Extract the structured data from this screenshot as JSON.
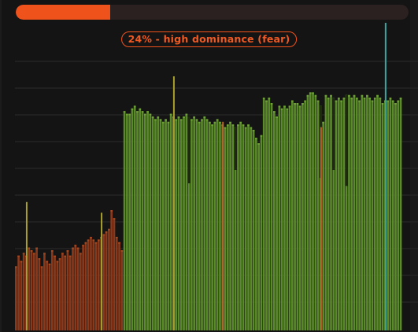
{
  "progress": {
    "value": 0.24,
    "fill_color": "#f0521c",
    "track_color": "#2a2120"
  },
  "status": {
    "label": "24% - high dominance (fear)"
  },
  "colors": {
    "background": "#141414",
    "gridline": "#2b2b2b",
    "fear_bar": "#8a3a1c",
    "fear_bar_top": "#a4481f",
    "greed_bar": "#5a8a2a",
    "greed_bar_top": "#6fa236",
    "marker_yellow": "#a8a02a",
    "marker_orange": "#c0602a",
    "marker_teal": "#3aa6a0",
    "marker_dark": "#1e2a10"
  },
  "chart_data": {
    "type": "bar",
    "gridlines": true,
    "ylim": [
      0,
      100
    ],
    "segments": [
      {
        "name": "fear",
        "count": 42
      },
      {
        "name": "greed",
        "count": 108
      }
    ],
    "values": [
      24,
      28,
      26,
      29,
      28,
      31,
      30,
      29,
      31,
      27,
      24,
      29,
      26,
      25,
      30,
      28,
      26,
      27,
      29,
      28,
      30,
      28,
      31,
      32,
      31,
      29,
      32,
      33,
      34,
      35,
      34,
      33,
      34,
      35,
      36,
      37,
      38,
      45,
      42,
      35,
      33,
      30,
      82,
      81,
      81,
      83,
      84,
      82,
      83,
      82,
      81,
      82,
      81,
      80,
      79,
      80,
      79,
      78,
      79,
      78,
      81,
      80,
      79,
      80,
      79,
      80,
      81,
      80,
      79,
      80,
      79,
      78,
      79,
      80,
      79,
      78,
      77,
      78,
      79,
      78,
      77,
      76,
      77,
      78,
      77,
      76,
      77,
      78,
      77,
      76,
      77,
      76,
      75,
      72,
      70,
      73,
      87,
      86,
      87,
      85,
      82,
      80,
      84,
      83,
      84,
      83,
      84,
      86,
      85,
      85,
      84,
      85,
      86,
      88,
      89,
      89,
      88,
      86,
      84,
      78,
      88,
      87,
      88,
      87,
      86,
      87,
      86,
      87,
      88,
      88,
      87,
      88,
      87,
      86,
      88,
      87,
      88,
      87,
      86,
      87,
      88,
      87,
      85,
      86,
      86,
      87,
      86,
      85,
      86,
      87
    ],
    "spikes": [
      {
        "index": 4,
        "value": 48,
        "color": "yellow"
      },
      {
        "index": 33,
        "value": 44,
        "color": "yellow"
      },
      {
        "index": 61,
        "value": 95,
        "color": "yellow"
      },
      {
        "index": 80,
        "value": 78,
        "color": "orange"
      },
      {
        "index": 118,
        "value": 76,
        "color": "orange"
      },
      {
        "index": 143,
        "value": 115,
        "color": "teal"
      }
    ],
    "dips": [
      {
        "index": 67,
        "value": 55
      },
      {
        "index": 85,
        "value": 60
      },
      {
        "index": 118,
        "value": 57
      },
      {
        "index": 123,
        "value": 60
      },
      {
        "index": 128,
        "value": 54
      }
    ]
  }
}
